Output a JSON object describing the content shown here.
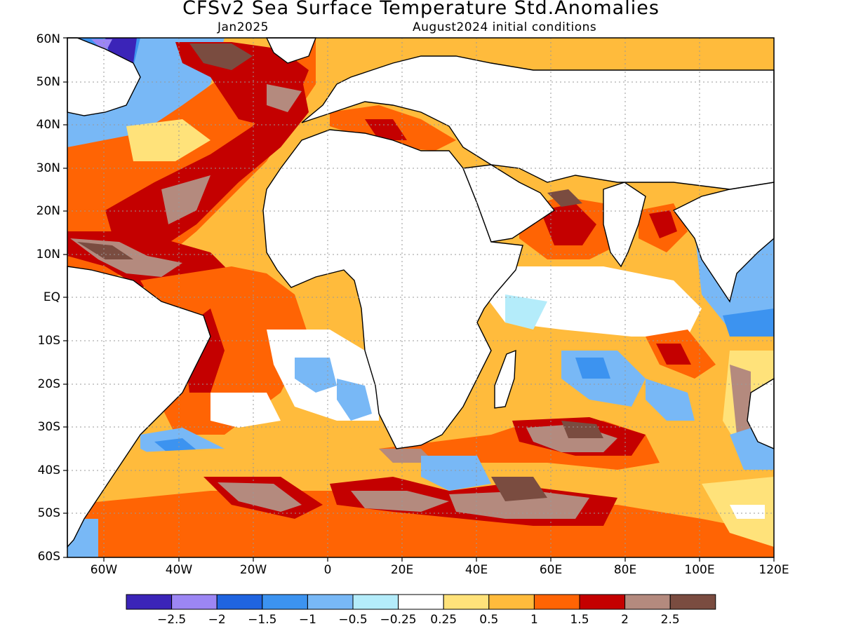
{
  "header": {
    "title": "CFSv2 Sea Surface Temperature Std.Anomalies",
    "target_month": "Jan2025",
    "initial_conditions": "August2024 initial conditions"
  },
  "map": {
    "lon_range": [
      -70,
      120
    ],
    "lat_range": [
      -60,
      60
    ],
    "lat_labels": [
      "60N",
      "50N",
      "40N",
      "30N",
      "20N",
      "10N",
      "EQ",
      "10S",
      "20S",
      "30S",
      "40S",
      "50S",
      "60S"
    ],
    "lon_labels": [
      "60W",
      "40W",
      "20W",
      "0",
      "20E",
      "40E",
      "60E",
      "80E",
      "100E",
      "120E"
    ],
    "grid": "dotted"
  },
  "colorbar": {
    "colors": [
      "#3b24b8",
      "#9c86f4",
      "#1f64e0",
      "#3c93f0",
      "#78b8f6",
      "#b4ecfa",
      "#ffffff",
      "#ffe27a",
      "#ffbb3c",
      "#ff6404",
      "#c40000",
      "#b48a7e",
      "#7a4c40"
    ],
    "labels": [
      "−2.5",
      "−2",
      "−1.5",
      "−1",
      "−0.5",
      "−0.25",
      "0.25",
      "0.5",
      "1",
      "1.5",
      "2",
      "2.5"
    ]
  }
}
